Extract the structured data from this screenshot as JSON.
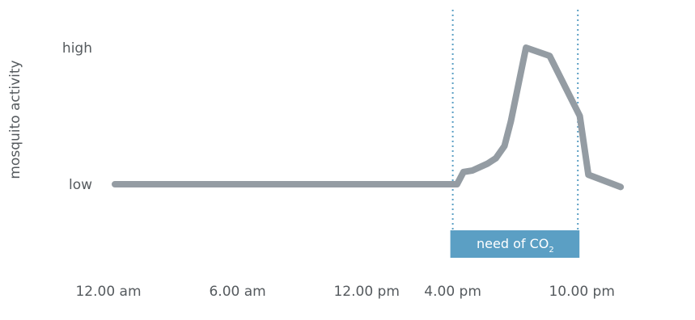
{
  "chart_data": {
    "type": "line",
    "title": "",
    "ylabel": "mosquito activity",
    "xlabel": "",
    "x_ticks": [
      {
        "label": "12.00 am",
        "hour": 0
      },
      {
        "label": "6.00 am",
        "hour": 6
      },
      {
        "label": "12.00 pm",
        "hour": 12
      },
      {
        "label": "4.00 pm",
        "hour": 16
      },
      {
        "label": "10.00 pm",
        "hour": 22
      }
    ],
    "y_ticks": [
      {
        "label": "high",
        "value": 1
      },
      {
        "label": "low",
        "value": 0
      }
    ],
    "xlim": [
      0,
      24
    ],
    "ylim": [
      0,
      1
    ],
    "series": [
      {
        "color": "#949ca3",
        "points": [
          [
            0,
            0
          ],
          [
            12,
            0
          ],
          [
            15.9,
            0
          ],
          [
            16.2,
            0.09
          ],
          [
            16.6,
            0.1
          ],
          [
            17.3,
            0.15
          ],
          [
            17.7,
            0.19
          ],
          [
            18.1,
            0.28
          ],
          [
            18.4,
            0.46
          ],
          [
            19.1,
            1
          ],
          [
            20.2,
            0.94
          ],
          [
            21.6,
            0.5
          ],
          [
            22.0,
            0.07
          ],
          [
            23.5,
            -0.02
          ]
        ]
      }
    ],
    "annotation": {
      "label": "need of CO",
      "label_subscript": "2",
      "start_hour": 16,
      "end_hour": 22,
      "line_color": "#5b9fc4",
      "band_color": "#5b9fc4"
    },
    "grid": false,
    "legend": "none"
  }
}
